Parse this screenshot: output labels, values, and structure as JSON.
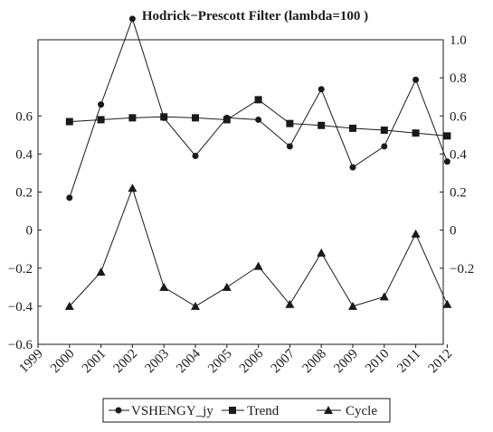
{
  "chart_data": {
    "type": "line",
    "title": "Hodrick−Prescott Filter (lambda=100 )",
    "x": [
      "1999",
      "2000",
      "2001",
      "2002",
      "2003",
      "2004",
      "2005",
      "2006",
      "2007",
      "2008",
      "2009",
      "2010",
      "2011",
      "2012"
    ],
    "left_axis": {
      "ylim": [
        -0.6,
        1.0
      ],
      "tick_labels": [
        "0.6",
        "0.4",
        "0.2",
        "0",
        "−0.2",
        "−0.4",
        "−0.6"
      ],
      "tick_values": [
        0.6,
        0.4,
        0.2,
        0,
        -0.2,
        -0.4,
        -0.6
      ]
    },
    "right_axis": {
      "ylim": [
        -0.6,
        1.0
      ],
      "tick_labels": [
        "1.0",
        "0.8",
        "0.6",
        "0.4",
        "0.2",
        "0",
        "−0.2"
      ],
      "tick_values": [
        1.0,
        0.8,
        0.6,
        0.4,
        0.2,
        0,
        -0.2
      ]
    },
    "series": [
      {
        "name": "VSHENGY_jy",
        "marker": "circle",
        "axis": "left",
        "values": [
          null,
          0.17,
          0.66,
          1.11,
          0.59,
          0.39,
          0.59,
          0.58,
          0.44,
          0.74,
          0.33,
          0.44,
          0.79,
          0.36
        ]
      },
      {
        "name": "Trend",
        "marker": "square",
        "axis": "left",
        "values": [
          null,
          0.57,
          0.58,
          0.59,
          0.595,
          0.59,
          0.58,
          0.685,
          0.56,
          0.55,
          0.535,
          0.525,
          0.51,
          0.495
        ]
      },
      {
        "name": "Cycle",
        "marker": "triangle",
        "axis": "right",
        "values": [
          null,
          -0.4,
          -0.22,
          0.22,
          -0.3,
          -0.4,
          -0.3,
          -0.19,
          -0.39,
          -0.12,
          -0.4,
          -0.35,
          -0.02,
          -0.39
        ]
      }
    ],
    "grid": false,
    "legend": "bottom",
    "color": "#1a1a1a"
  }
}
